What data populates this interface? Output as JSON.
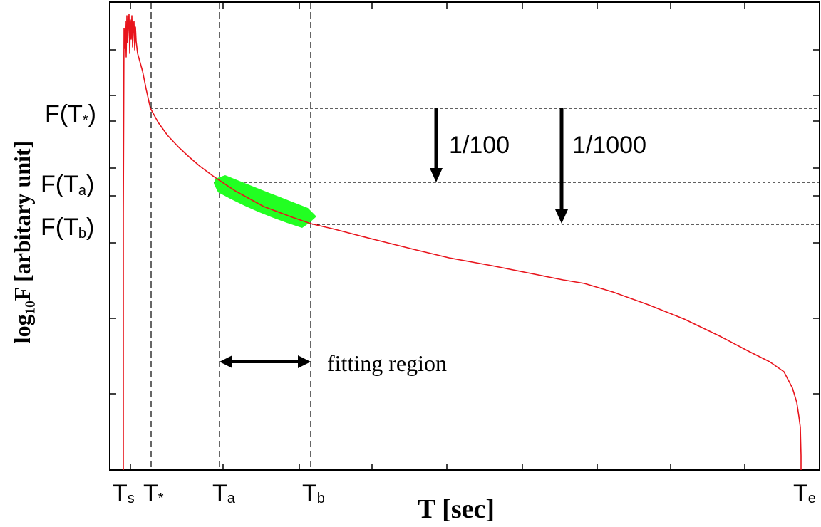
{
  "chart_data": {
    "type": "line",
    "xlabel": "T [sec]",
    "ylabel": "log₁₀F [arbitary unit]",
    "colors": {
      "curve": "#e8141c",
      "fit_band": "#22ff22",
      "axes": "#000000"
    },
    "grid": false,
    "x_tick_labels": [
      {
        "base": "T",
        "sub": "s"
      },
      {
        "base": "T",
        "sub": "*"
      },
      {
        "base": "T",
        "sub": "a"
      },
      {
        "base": "T",
        "sub": "b"
      },
      {
        "base": "T",
        "sub": "e"
      }
    ],
    "y_level_labels": [
      {
        "base": "F(T",
        "sub": "*",
        "close": ")"
      },
      {
        "base": "F(T",
        "sub": "a",
        "close": ")"
      },
      {
        "base": "F(T",
        "sub": "b",
        "close": ")"
      }
    ],
    "annotations": {
      "arrow_1": "1/100",
      "arrow_2": "1/1000",
      "fitting_region": "fitting region"
    }
  }
}
